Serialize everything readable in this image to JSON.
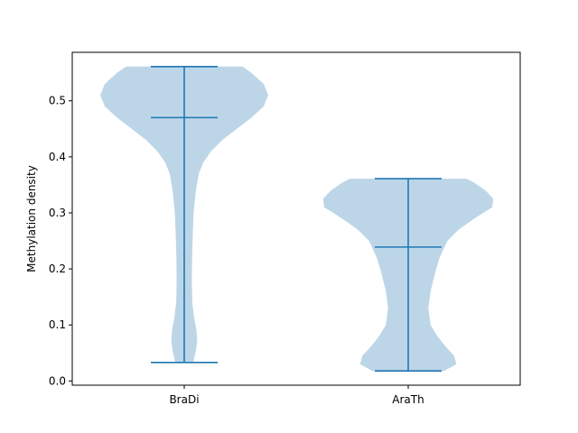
{
  "chart_data": {
    "type": "violin",
    "title": "",
    "xlabel": "",
    "ylabel": "Methylation density",
    "ylim": [
      -0.0075,
      0.5865
    ],
    "yticks": [
      0.0,
      0.1,
      0.2,
      0.3,
      0.4,
      0.5
    ],
    "ytick_labels": [
      "0.0",
      "0.1",
      "0.2",
      "0.3",
      "0.4",
      "0.5"
    ],
    "categories": [
      "BraDi",
      "AraTh"
    ],
    "grid": false,
    "colors": {
      "body": "#bcd6e8",
      "lines": "#1f77b4"
    },
    "violins": [
      {
        "name": "BraDi",
        "min": 0.033,
        "max": 0.561,
        "median": 0.47,
        "profile": [
          [
            0.033,
            0.04
          ],
          [
            0.05,
            0.05
          ],
          [
            0.07,
            0.058
          ],
          [
            0.09,
            0.055
          ],
          [
            0.11,
            0.045
          ],
          [
            0.14,
            0.036
          ],
          [
            0.18,
            0.034
          ],
          [
            0.22,
            0.035
          ],
          [
            0.26,
            0.038
          ],
          [
            0.3,
            0.042
          ],
          [
            0.34,
            0.052
          ],
          [
            0.37,
            0.065
          ],
          [
            0.39,
            0.085
          ],
          [
            0.41,
            0.12
          ],
          [
            0.43,
            0.17
          ],
          [
            0.45,
            0.235
          ],
          [
            0.47,
            0.3
          ],
          [
            0.49,
            0.355
          ],
          [
            0.51,
            0.375
          ],
          [
            0.53,
            0.355
          ],
          [
            0.55,
            0.3
          ],
          [
            0.561,
            0.26
          ]
        ]
      },
      {
        "name": "AraTh",
        "min": 0.018,
        "max": 0.361,
        "median": 0.239,
        "profile": [
          [
            0.018,
            0.16
          ],
          [
            0.03,
            0.215
          ],
          [
            0.045,
            0.205
          ],
          [
            0.06,
            0.17
          ],
          [
            0.08,
            0.13
          ],
          [
            0.1,
            0.1
          ],
          [
            0.13,
            0.09
          ],
          [
            0.16,
            0.1
          ],
          [
            0.19,
            0.118
          ],
          [
            0.22,
            0.14
          ],
          [
            0.25,
            0.175
          ],
          [
            0.27,
            0.225
          ],
          [
            0.29,
            0.295
          ],
          [
            0.31,
            0.375
          ],
          [
            0.325,
            0.38
          ],
          [
            0.34,
            0.345
          ],
          [
            0.355,
            0.29
          ],
          [
            0.361,
            0.26
          ]
        ]
      }
    ]
  }
}
